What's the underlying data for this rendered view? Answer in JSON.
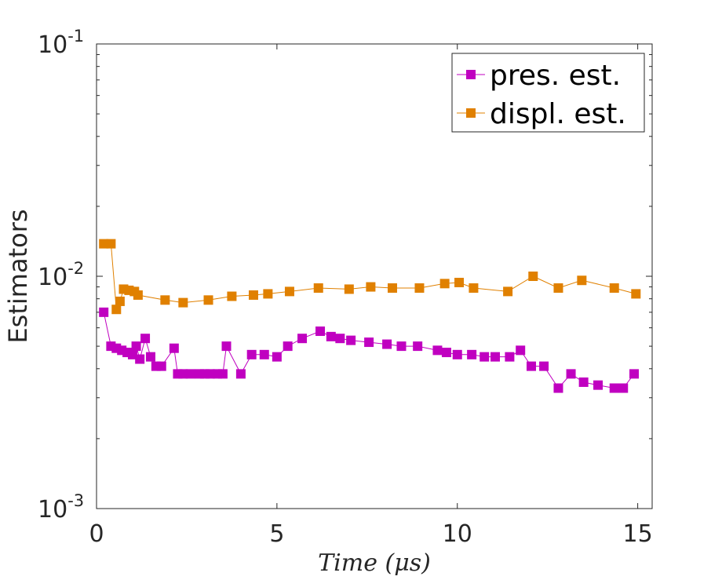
{
  "chart_data": {
    "type": "line",
    "yscale": "log",
    "xlabel": "Time (μs)",
    "ylabel": "Estimators",
    "xlim": [
      0,
      15.4
    ],
    "ylim": [
      0.001,
      0.1
    ],
    "xticks": [
      {
        "value": 0,
        "label": "0"
      },
      {
        "value": 5,
        "label": "5"
      },
      {
        "value": 10,
        "label": "10"
      },
      {
        "value": 15,
        "label": "15"
      }
    ],
    "yticks": [
      {
        "value": 0.001,
        "base": "10",
        "exp": "-3"
      },
      {
        "value": 0.01,
        "base": "10",
        "exp": "-2"
      },
      {
        "value": 0.1,
        "base": "10",
        "exp": "-1"
      }
    ],
    "legend_position": "top-right",
    "series": [
      {
        "name": "pres. est.",
        "color": "#c000c0",
        "x": [
          0.2,
          0.4,
          0.55,
          0.7,
          0.85,
          1.0,
          1.1,
          1.2,
          1.35,
          1.5,
          1.65,
          1.8,
          2.15,
          2.25,
          2.4,
          2.6,
          2.85,
          3.0,
          3.15,
          3.35,
          3.5,
          3.6,
          4.0,
          4.3,
          4.65,
          5.0,
          5.3,
          5.7,
          6.2,
          6.5,
          6.75,
          7.05,
          7.55,
          8.05,
          8.45,
          8.9,
          9.45,
          9.7,
          10.0,
          10.4,
          10.75,
          11.05,
          11.45,
          11.75,
          12.05,
          12.4,
          12.8,
          13.15,
          13.5,
          13.9,
          14.35,
          14.6,
          14.9
        ],
        "values": [
          0.007,
          0.005,
          0.0049,
          0.0048,
          0.0047,
          0.0046,
          0.005,
          0.0044,
          0.0054,
          0.0045,
          0.0041,
          0.0041,
          0.0049,
          0.0038,
          0.0038,
          0.0038,
          0.0038,
          0.0038,
          0.0038,
          0.0038,
          0.0038,
          0.005,
          0.0038,
          0.0046,
          0.0046,
          0.0045,
          0.005,
          0.0054,
          0.0058,
          0.0055,
          0.0054,
          0.0053,
          0.0052,
          0.0051,
          0.005,
          0.005,
          0.0048,
          0.0047,
          0.0046,
          0.0046,
          0.0045,
          0.0045,
          0.0045,
          0.0048,
          0.0041,
          0.0041,
          0.0033,
          0.0038,
          0.0035,
          0.0034,
          0.0033,
          0.0033,
          0.0038
        ]
      },
      {
        "name": "displ. est.",
        "color": "#e08000",
        "x": [
          0.2,
          0.4,
          0.55,
          0.65,
          0.75,
          0.9,
          1.05,
          1.15,
          1.9,
          2.4,
          3.1,
          3.75,
          4.35,
          4.75,
          5.35,
          6.15,
          7.0,
          7.6,
          8.2,
          8.95,
          9.65,
          10.05,
          10.45,
          11.4,
          12.1,
          12.8,
          13.45,
          14.35,
          14.95
        ],
        "values": [
          0.0138,
          0.0138,
          0.0072,
          0.0078,
          0.0088,
          0.0087,
          0.0086,
          0.0083,
          0.0079,
          0.0077,
          0.0079,
          0.0082,
          0.0083,
          0.0084,
          0.0086,
          0.0089,
          0.0088,
          0.009,
          0.0089,
          0.0089,
          0.0093,
          0.0094,
          0.0089,
          0.0086,
          0.01,
          0.0089,
          0.0096,
          0.0089,
          0.0084
        ]
      }
    ]
  }
}
